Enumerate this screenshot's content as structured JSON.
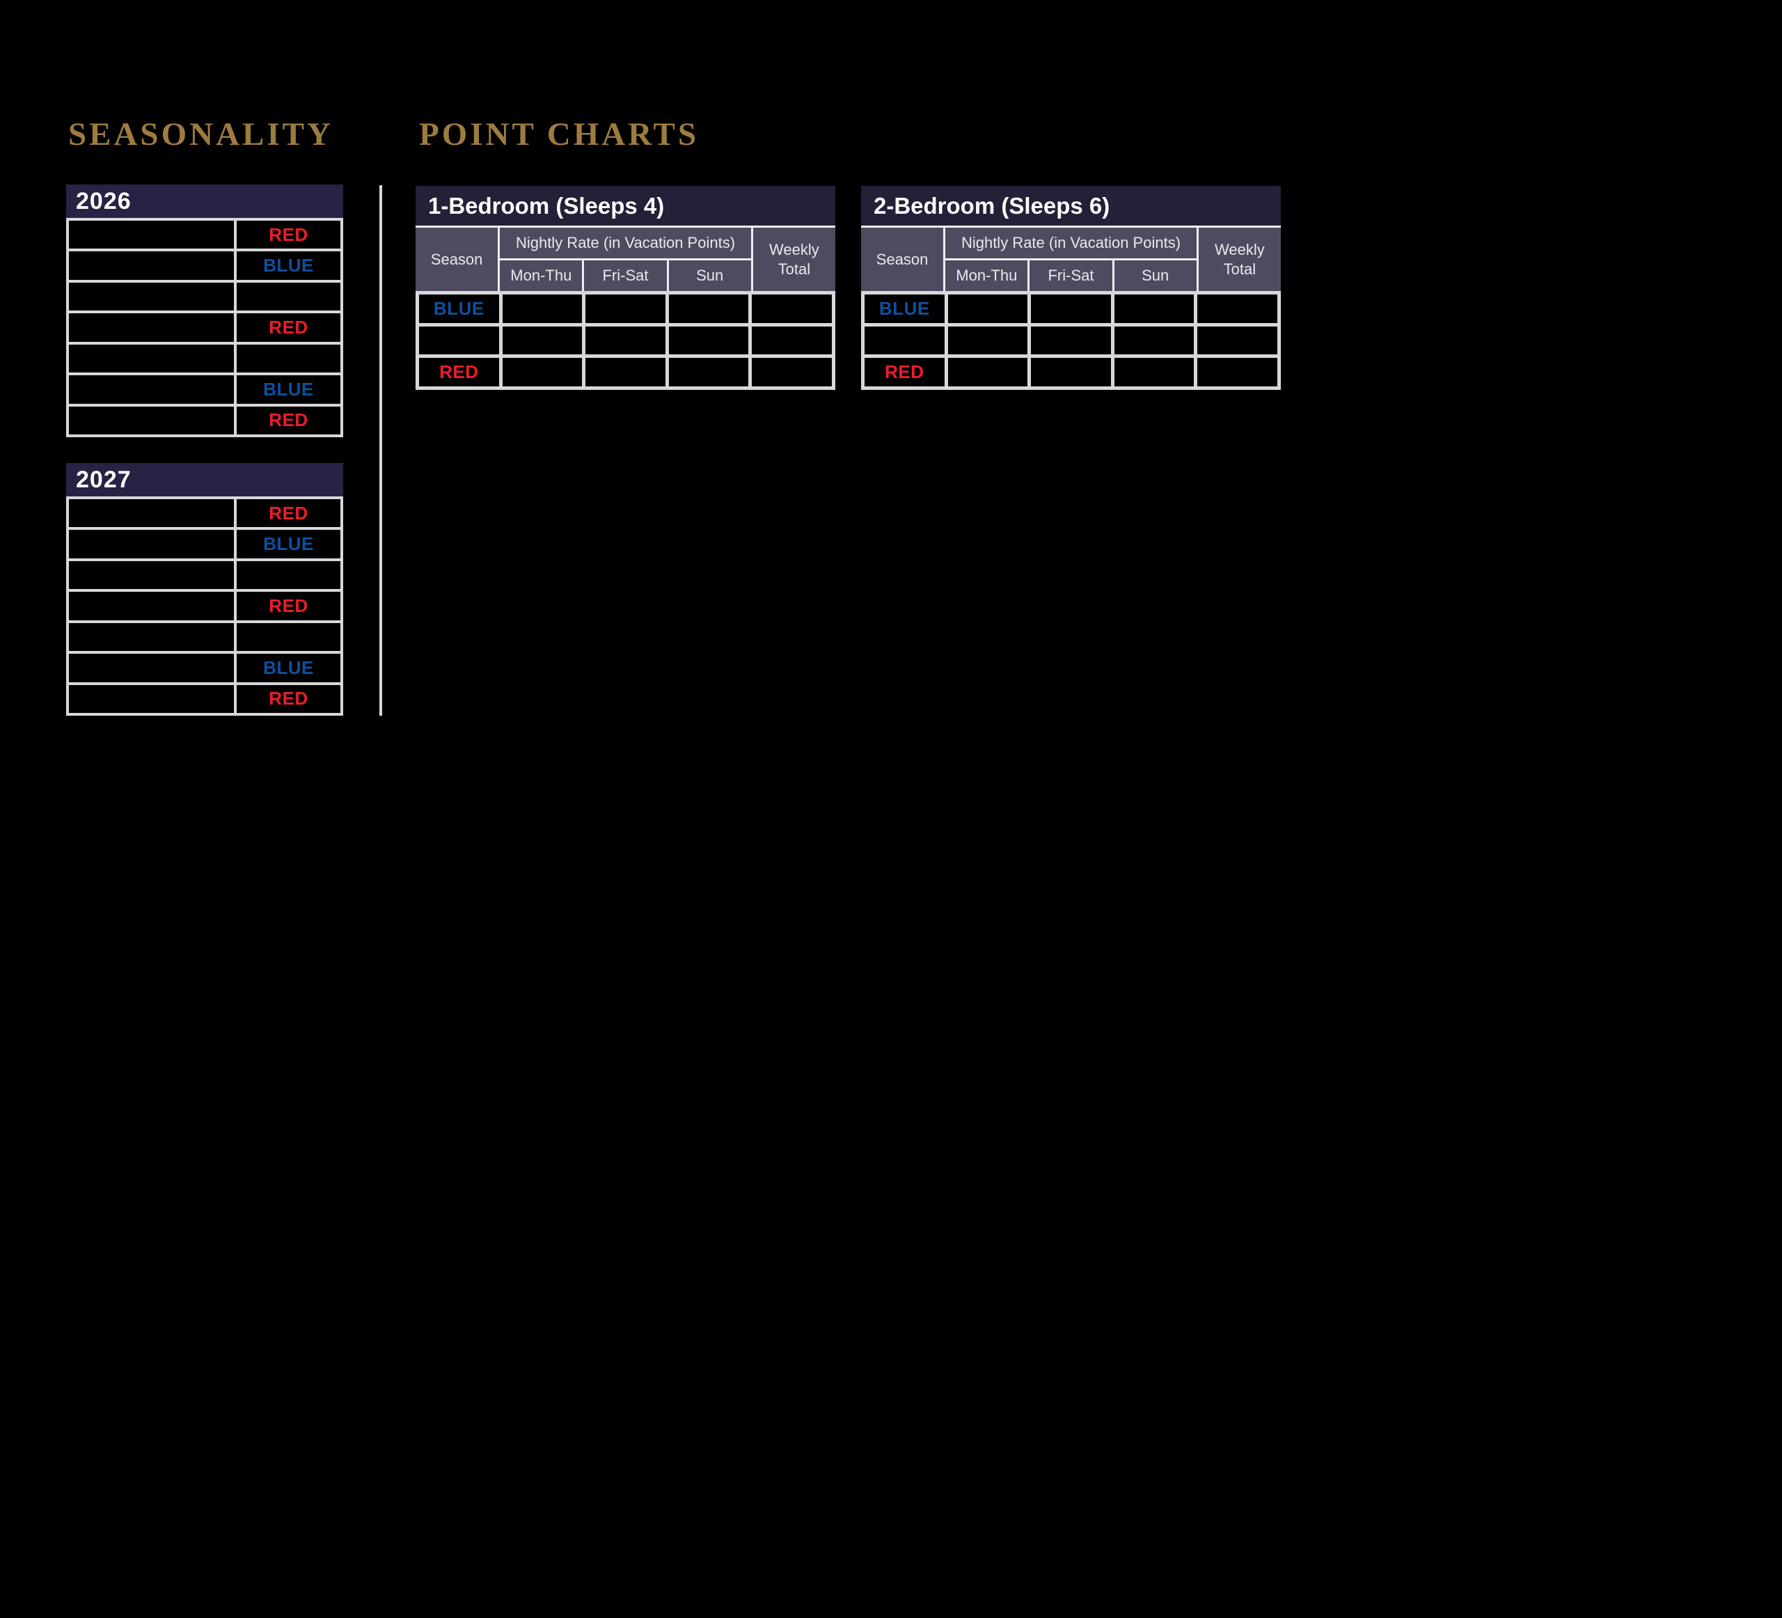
{
  "colors": {
    "background": "#000000",
    "heading_gold": "#9d7c3e",
    "title_bar_navy": "#232038",
    "year_bar_navy": "#272344",
    "header_slate": "#4e4b61",
    "border_gray": "#d8d8da",
    "red": "#ed1c2b",
    "blue": "#0f4f9f"
  },
  "headings": {
    "seasonality": "SEASONALITY",
    "point_charts": "POINT CHARTS"
  },
  "seasonality": {
    "tables": [
      {
        "year": "2026",
        "rows": [
          {
            "range": "",
            "season": "RED"
          },
          {
            "range": "",
            "season": "BLUE"
          },
          {
            "range": "",
            "season": ""
          },
          {
            "range": "",
            "season": "RED"
          },
          {
            "range": "",
            "season": ""
          },
          {
            "range": "",
            "season": "BLUE"
          },
          {
            "range": "",
            "season": "RED"
          }
        ]
      },
      {
        "year": "2027",
        "rows": [
          {
            "range": "",
            "season": "RED"
          },
          {
            "range": "",
            "season": "BLUE"
          },
          {
            "range": "",
            "season": ""
          },
          {
            "range": "",
            "season": "RED"
          },
          {
            "range": "",
            "season": ""
          },
          {
            "range": "",
            "season": "BLUE"
          },
          {
            "range": "",
            "season": "RED"
          }
        ]
      }
    ]
  },
  "point_charts": {
    "header": {
      "season": "Season",
      "nightly_rate": "Nightly Rate (in Vacation Points)",
      "days": [
        "Mon-Thu",
        "Fri-Sat",
        "Sun"
      ],
      "weekly_total": "Weekly\nTotal"
    },
    "tables": [
      {
        "title": "1-Bedroom (Sleeps 4)",
        "rows": [
          {
            "season": "BLUE",
            "mon_thu": "",
            "fri_sat": "",
            "sun": "",
            "weekly_total": ""
          },
          {
            "season": "",
            "mon_thu": "",
            "fri_sat": "",
            "sun": "",
            "weekly_total": ""
          },
          {
            "season": "RED",
            "mon_thu": "",
            "fri_sat": "",
            "sun": "",
            "weekly_total": ""
          }
        ]
      },
      {
        "title": "2-Bedroom (Sleeps 6)",
        "rows": [
          {
            "season": "BLUE",
            "mon_thu": "",
            "fri_sat": "",
            "sun": "",
            "weekly_total": ""
          },
          {
            "season": "",
            "mon_thu": "",
            "fri_sat": "",
            "sun": "",
            "weekly_total": ""
          },
          {
            "season": "RED",
            "mon_thu": "",
            "fri_sat": "",
            "sun": "",
            "weekly_total": ""
          }
        ]
      }
    ]
  }
}
